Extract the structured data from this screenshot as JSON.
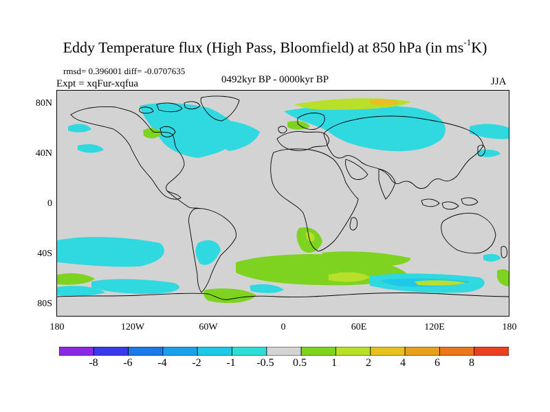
{
  "title_main": "Eddy Temperature flux (High Pass, Bloomfield) at 850 hPa (in ms",
  "title_sup": "-1",
  "title_end": "K)",
  "stats": "rmsd= 0.396001 diff= -0.0707635",
  "expt": "Expt = xqFur-xqfua",
  "period": "0492kyr BP - 0000kyr BP",
  "season": "JJA",
  "lat_labels": [
    "80N",
    "40N",
    "0",
    "40S",
    "80S"
  ],
  "lon_labels": [
    "180",
    "120W",
    "60W",
    "0",
    "60E",
    "120E",
    "180"
  ],
  "colorbar": {
    "labels": [
      "-8",
      "-6",
      "-4",
      "-2",
      "-1",
      "-0.5",
      "0.5",
      "1",
      "2",
      "4",
      "6",
      "8"
    ],
    "colors": [
      "#8a2be2",
      "#3a3ae8",
      "#1e78e6",
      "#1ea0e6",
      "#20c8e8",
      "#30dcd6",
      "#d3d3d3",
      "#7ed321",
      "#b8e02a",
      "#e6c020",
      "#e6a020",
      "#e87820",
      "#e84020"
    ]
  },
  "colors": {
    "background_gray": "#d3d3d3",
    "cyan": "#30d8e0",
    "light_cyan": "#20c8e8",
    "green": "#7ed321",
    "yellow_green": "#b8e02a",
    "yellow": "#e6c020"
  }
}
